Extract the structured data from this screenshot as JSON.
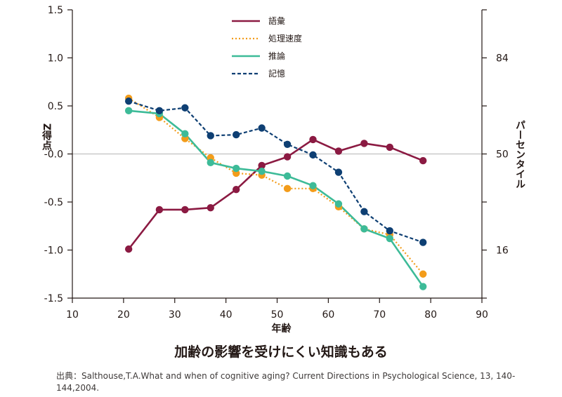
{
  "title": "加齢の影響を受けにくい知識もある",
  "source": "出典：Salthouse,T.A.What and when of cognitive aging? Current Directions in Psychological Science, 13, 140-144,2004.",
  "chart_data": {
    "type": "line",
    "xlabel": "年齢",
    "ylabel": "Z得点",
    "y2label": "パーセンタイル",
    "xlim": [
      10,
      90
    ],
    "ylim": [
      -1.5,
      1.5
    ],
    "xticks": [
      "10",
      "20",
      "30",
      "40",
      "50",
      "60",
      "70",
      "80",
      "90"
    ],
    "yticks": [
      "1.5",
      "1.0",
      "0.5",
      "-0.0",
      "-0.5",
      "-1.0",
      "-1.5"
    ],
    "y2ticks": [
      {
        "label": "84",
        "z": 1.0
      },
      {
        "label": "50",
        "z": 0.0
      },
      {
        "label": "16",
        "z": -1.0
      }
    ],
    "reference_line_y": 0,
    "legend_position": "top-center",
    "series": [
      {
        "name": "語彙",
        "color": "#8b1a42",
        "style": "solid",
        "points": [
          [
            21,
            -0.99
          ],
          [
            27,
            -0.58
          ],
          [
            32,
            -0.58
          ],
          [
            37,
            -0.56
          ],
          [
            42,
            -0.37
          ],
          [
            47,
            -0.12
          ],
          [
            52,
            -0.03
          ],
          [
            57,
            0.15
          ],
          [
            62,
            0.03
          ],
          [
            67,
            0.11
          ],
          [
            72,
            0.07
          ],
          [
            78.5,
            -0.07
          ]
        ]
      },
      {
        "name": "処理速度",
        "color": "#f39c1a",
        "style": "dotted",
        "points": [
          [
            21,
            0.58
          ],
          [
            27,
            0.38
          ],
          [
            32,
            0.16
          ],
          [
            37,
            -0.04
          ],
          [
            42,
            -0.2
          ],
          [
            47,
            -0.22
          ],
          [
            52,
            -0.36
          ],
          [
            57,
            -0.36
          ],
          [
            62,
            -0.55
          ],
          [
            67,
            -0.78
          ],
          [
            72,
            -0.84
          ],
          [
            78.5,
            -1.25
          ]
        ]
      },
      {
        "name": "推論",
        "color": "#3dbb98",
        "style": "solid",
        "points": [
          [
            21,
            0.45
          ],
          [
            27,
            0.42
          ],
          [
            32,
            0.21
          ],
          [
            37,
            -0.09
          ],
          [
            42,
            -0.15
          ],
          [
            47,
            -0.18
          ],
          [
            52,
            -0.23
          ],
          [
            57,
            -0.33
          ],
          [
            62,
            -0.52
          ],
          [
            67,
            -0.78
          ],
          [
            72,
            -0.88
          ],
          [
            78.5,
            -1.38
          ]
        ]
      },
      {
        "name": "記憶",
        "color": "#0e3f73",
        "style": "dashed",
        "points": [
          [
            21,
            0.55
          ],
          [
            27,
            0.45
          ],
          [
            32,
            0.48
          ],
          [
            37,
            0.19
          ],
          [
            42,
            0.2
          ],
          [
            47,
            0.27
          ],
          [
            52,
            0.1
          ],
          [
            57,
            -0.01
          ],
          [
            62,
            -0.19
          ],
          [
            67,
            -0.6
          ],
          [
            72,
            -0.8
          ],
          [
            78.5,
            -0.92
          ]
        ]
      }
    ]
  }
}
